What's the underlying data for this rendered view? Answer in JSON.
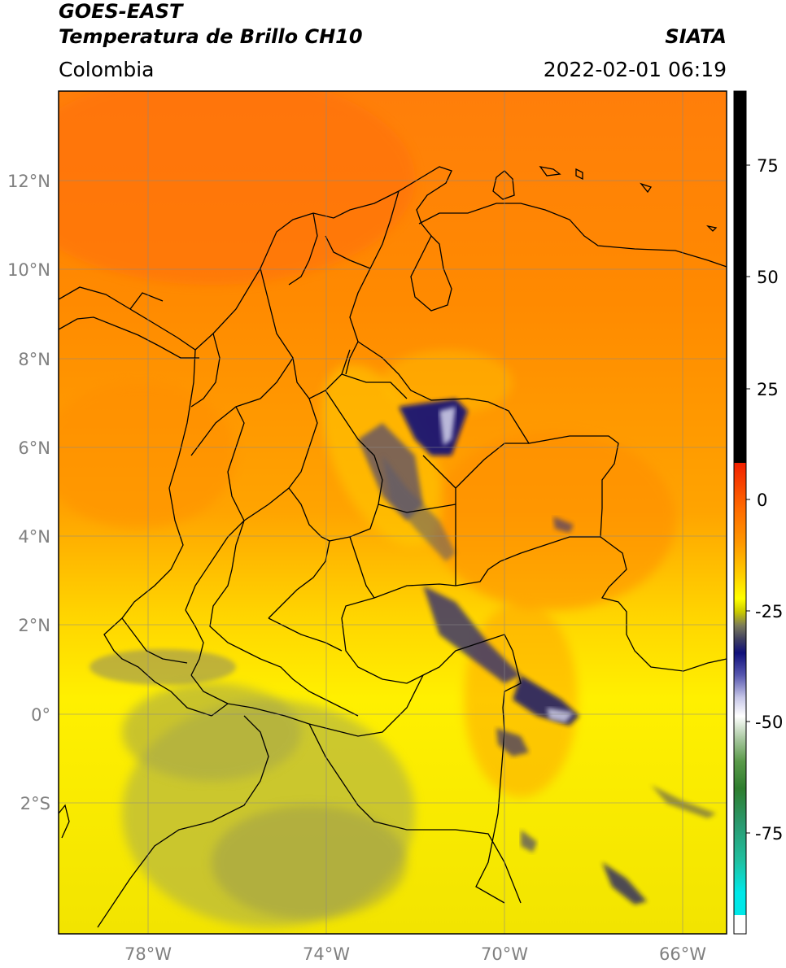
{
  "header": {
    "satellite": "GOES-EAST",
    "product": "Temperatura de Brillo CH10",
    "region": "Colombia",
    "organization": "SIATA",
    "datetime": "2022-02-01 06:19"
  },
  "map": {
    "lat_ticks": [
      "12°N",
      "10°N",
      "8°N",
      "6°N",
      "4°N",
      "2°N",
      "0°",
      "2°S"
    ],
    "lon_ticks": [
      "78°W",
      "74°W",
      "70°W",
      "66°W"
    ]
  },
  "colorbar": {
    "ticks": [
      "75",
      "50",
      "25",
      "0",
      "-25",
      "-50",
      "-75"
    ],
    "colors": {
      "black": "#000000",
      "red": "#f02000",
      "orange": "#ff8c00",
      "yellow": "#ffff00",
      "olive": "#a0a040",
      "navy": "#10107a",
      "white": "#ffffff",
      "green": "#2e7d2e",
      "teal": "#20c0a0",
      "cyan": "#00e8e8"
    }
  }
}
